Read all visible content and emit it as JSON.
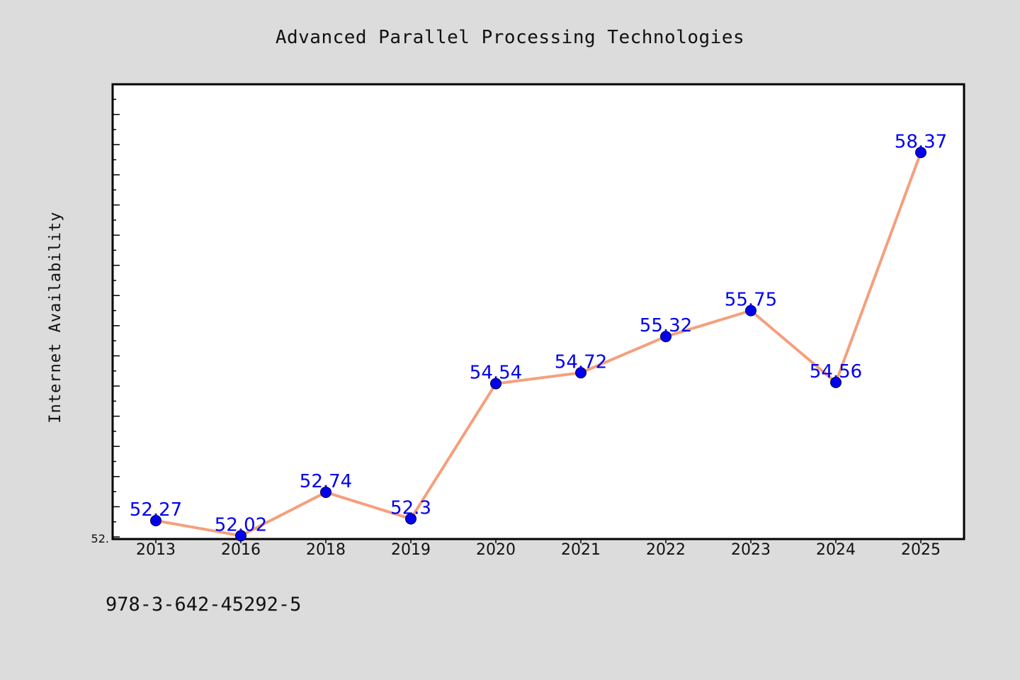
{
  "chart_data": {
    "type": "line",
    "title": "Advanced Parallel Processing Technologies",
    "ylabel": "Internet Availability",
    "xlabel": "",
    "categories": [
      "2013",
      "2016",
      "2018",
      "2019",
      "2020",
      "2021",
      "2022",
      "2023",
      "2024",
      "2025"
    ],
    "series": [
      {
        "values": [
          52.27,
          52.02,
          52.74,
          52.3,
          54.54,
          54.72,
          55.32,
          55.75,
          54.56,
          58.37
        ],
        "data_labels": [
          "52.27",
          "52.02",
          "52.74",
          "52.3",
          "54.54",
          "54.72",
          "55.32",
          "55.75",
          "54.56",
          "58.37"
        ]
      }
    ],
    "ylim": [
      52.0,
      59.5
    ],
    "y_tick_label": "52.",
    "grid": false,
    "colors": {
      "line": "#f4a07c",
      "marker": "#0000ee",
      "label": "#0000ee",
      "background": "#dcdcdc",
      "plot_background": "#ffffff"
    }
  },
  "footer": {
    "isbn": "978-3-642-45292-5"
  }
}
